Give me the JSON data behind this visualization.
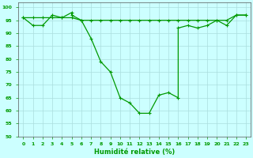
{
  "curve1_x": [
    0,
    1,
    2,
    3,
    4,
    5,
    5,
    6,
    7,
    8,
    9,
    10,
    11,
    12,
    13,
    14,
    15,
    16,
    16,
    17,
    18,
    19,
    20,
    21,
    22,
    23
  ],
  "curve1_y": [
    96,
    93,
    93,
    97,
    96,
    98,
    97,
    95,
    88,
    79,
    75,
    65,
    63,
    59,
    59,
    66,
    67,
    65,
    92,
    93,
    92,
    93,
    95,
    93,
    97,
    97
  ],
  "curve2_x": [
    0,
    1,
    2,
    3,
    4,
    5,
    6,
    7,
    8,
    9,
    10,
    11,
    12,
    13,
    14,
    15,
    16,
    17,
    18,
    19,
    20,
    21,
    22,
    23
  ],
  "curve2_y": [
    96,
    96,
    96,
    96,
    96,
    96,
    95,
    95,
    95,
    95,
    95,
    95,
    95,
    95,
    95,
    95,
    95,
    95,
    95,
    95,
    95,
    95,
    97,
    97
  ],
  "xlabel": "Humidité relative (%)",
  "ylim": [
    50,
    102
  ],
  "xlim": [
    -0.5,
    23.5
  ],
  "yticks": [
    50,
    55,
    60,
    65,
    70,
    75,
    80,
    85,
    90,
    95,
    100
  ],
  "xticks": [
    0,
    1,
    2,
    3,
    4,
    5,
    6,
    7,
    8,
    9,
    10,
    11,
    12,
    13,
    14,
    15,
    16,
    17,
    18,
    19,
    20,
    21,
    22,
    23
  ],
  "line_color": "#009900",
  "bg_color": "#ccffff",
  "grid_color": "#aadddd",
  "grid_minor_color": "#bbeeee"
}
